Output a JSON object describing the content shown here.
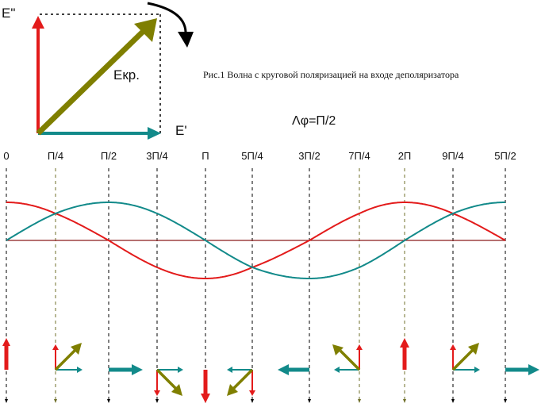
{
  "figure": {
    "caption": "Рис.1 Волна с круговой поляризацией на входе деполяризатора",
    "phase_label": "Λφ=Π/2"
  },
  "vector_diagram": {
    "label_e_double_prime": "E\"",
    "label_e_prime": "E'",
    "label_e_circ": "Eкр.",
    "colors": {
      "e_double_prime": "#e31b1b",
      "e_prime": "#128a8a",
      "e_circ": "#7f7f00",
      "rotation_arrow": "#000000"
    }
  },
  "phase_axis": {
    "ticks": [
      "0",
      "Π/4",
      "Π/2",
      "3Π/4",
      "Π",
      "5Π/4",
      "3Π/2",
      "7Π/4",
      "2Π",
      "9Π/4",
      "5Π/2"
    ]
  },
  "waves": {
    "red_color": "#e31b1b",
    "teal_color": "#128a8a",
    "baseline_color": "#8b1a1a"
  }
}
